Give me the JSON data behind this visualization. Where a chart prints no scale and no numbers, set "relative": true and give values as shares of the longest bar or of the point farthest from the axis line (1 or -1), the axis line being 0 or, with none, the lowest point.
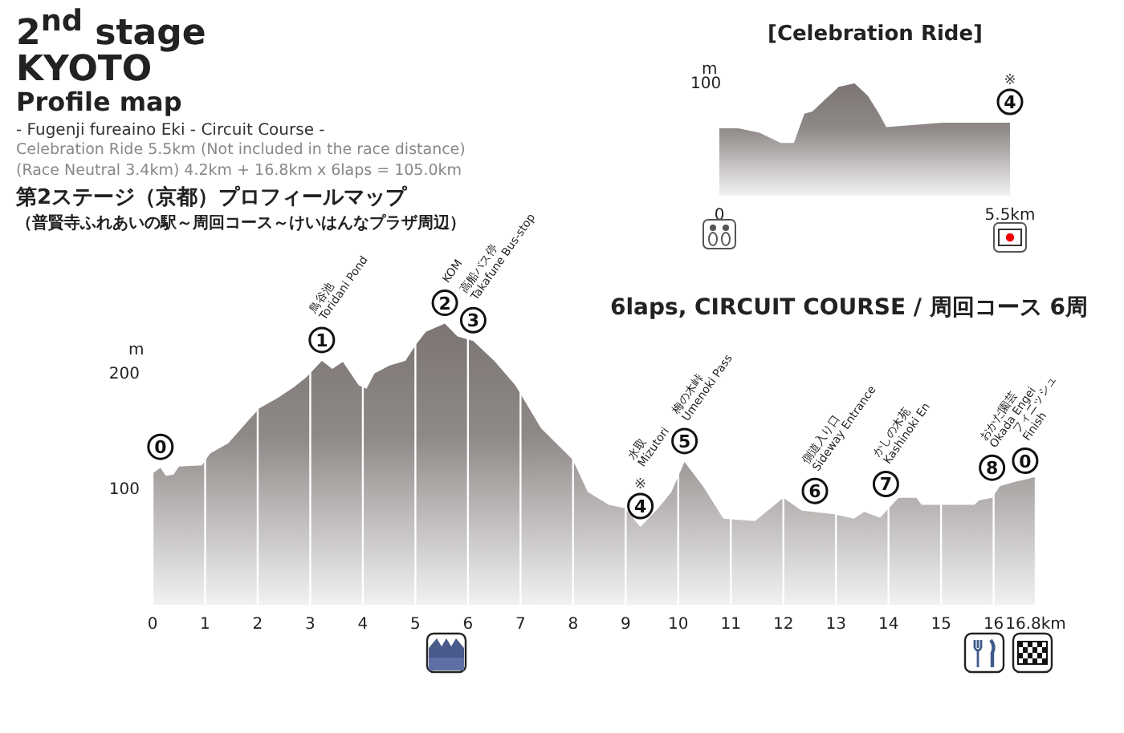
{
  "chart_data": [
    {
      "type": "area",
      "title": "2$^{nd}$ stage\nKYOTO\nProfile map",
      "subtitle": "6laps, CIRCUIT COURSE / 周回コース 6周",
      "ylabel": "m",
      "annotations": [
        "- Fugenji fureaino Eki - Circuit Course -",
        "Celebration Ride 5.5km (Not included in the race distance)",
        "(Race Neutral 3.4km) 4.2km + 16.8km x 6laps  = 105.0km",
        "第2ステージ（京都）プロフィールマップ",
        "（普賢寺ふれあいの駅～周回コース～けいはんなプラザ周辺）",
        "鳥谷池\nToridani Pond",
        "KOM",
        "高船バス停\nTakafune Bus-stop",
        "水取\nMizutori",
        "梅の木峠\nUmenoki Pass",
        "側道入り口\nSideway Entrance",
        "かしの木苑\nKashinoki En",
        "おかだ園芸\nOkada Engei",
        "フィニッシュ\nFinish",
        {
          "text": "0",
          "x": 0.15,
          "y": 118
        },
        {
          "text": "1",
          "x": 3.22,
          "y": 210
        },
        {
          "text": "2",
          "x": 5.56,
          "y": 242
        },
        {
          "text": "3",
          "x": 6.1,
          "y": 227
        },
        {
          "text": "4",
          "x": 9.28,
          "y": 67
        },
        {
          "text": "※",
          "x": 9.28,
          "y": 67
        },
        {
          "text": "5",
          "x": 10.12,
          "y": 123
        },
        {
          "text": "6",
          "x": 12.6,
          "y": 80
        },
        {
          "text": "7",
          "x": 13.95,
          "y": 86
        },
        {
          "text": "8",
          "x": 15.97,
          "y": 100
        },
        {
          "text": "0",
          "x": 16.6,
          "y": 106
        }
      ],
      "x": [
        0,
        0.15,
        0.25,
        0.4,
        0.5,
        0.94,
        1.09,
        1.44,
        1.79,
        2.03,
        2.38,
        2.68,
        2.93,
        3.22,
        3.42,
        3.62,
        3.92,
        4.07,
        4.22,
        4.51,
        4.81,
        5.01,
        5.2,
        5.56,
        5.8,
        6.1,
        6.5,
        6.9,
        7.39,
        7.99,
        8.28,
        8.68,
        8.98,
        9.28,
        9.62,
        9.87,
        10.12,
        10.47,
        10.86,
        11.46,
        12.0,
        12.35,
        12.95,
        13.34,
        13.54,
        13.84,
        14.19,
        14.53,
        14.63,
        15.63,
        15.73,
        15.97,
        16.12,
        16.42,
        16.8
      ],
      "values": [
        113,
        118,
        111,
        112,
        119,
        120,
        130,
        139,
        157,
        169,
        178,
        187,
        196,
        210,
        203,
        209,
        189,
        186,
        199,
        206,
        210,
        224,
        235,
        242,
        231,
        227,
        210,
        189,
        152,
        125,
        97,
        86,
        83,
        67,
        83,
        97,
        123,
        102,
        74,
        72,
        92,
        81,
        78,
        74,
        80,
        75,
        92,
        92,
        86,
        86,
        90,
        92,
        102,
        106,
        110
      ],
      "color": "#231815",
      "xlim": [
        0,
        16.8
      ],
      "ylim": [
        0,
        250
      ],
      "xticks": [
        0,
        1,
        2,
        3,
        4,
        5,
        6,
        7,
        8,
        9,
        10,
        11,
        12,
        13,
        14,
        15,
        16,
        {
          "value": 16.8,
          "label": "16.8km"
        }
      ],
      "yticks": [
        100,
        200
      ],
      "grid": "x"
    },
    {
      "type": "area",
      "title": "[Celebration Ride]",
      "ylabel": "m",
      "relative": true,
      "annotations": [
        "100",
        {
          "text": "4",
          "x": 5.5,
          "y": 0.65
        },
        {
          "text": "※",
          "x": 5.5,
          "y": 0.65
        }
      ],
      "x": [
        0,
        0.36,
        0.76,
        1.16,
        1.41,
        1.61,
        1.76,
        2.01,
        2.26,
        2.56,
        2.81,
        3.01,
        3.16,
        4.21,
        5.5
      ],
      "values": [
        0.6,
        0.6,
        0.56,
        0.47,
        0.47,
        0.73,
        0.75,
        0.86,
        0.97,
        1,
        0.89,
        0.74,
        0.61,
        0.65,
        0.65
      ],
      "color": "#231815",
      "xlim": [
        0,
        5.5
      ],
      "xticks": [
        0,
        {
          "value": 5.5,
          "label": "5.5km"
        }
      ]
    }
  ]
}
